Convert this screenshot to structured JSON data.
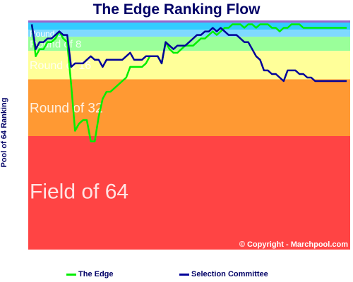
{
  "chart_data": {
    "type": "line",
    "title": "The Edge Ranking Flow",
    "ylabel": "Pool of 64 Ranking",
    "xlabel": "",
    "copyright": "© Copyright - Marchpool.com",
    "ylim": [
      1,
      64
    ],
    "bands": [
      {
        "label": "Round of 8",
        "from": 5,
        "to": 8,
        "color": "#9aff9a",
        "label_size": 15
      },
      {
        "label": "Round of 16",
        "from": 9,
        "to": 16,
        "color": "#ffff99",
        "label_size": 16
      },
      {
        "label": "Round of 32",
        "from": 17,
        "to": 32,
        "color": "#ff9933",
        "label_size": 19
      },
      {
        "label": "Field of 64",
        "from": 33,
        "to": 64,
        "color": "#ff4444",
        "label_size": 30
      }
    ],
    "top_bands": [
      {
        "from": 1,
        "to": 2,
        "color": "#33ccff"
      },
      {
        "from": 3,
        "to": 4,
        "color": "#7fd9ff"
      }
    ],
    "top_band_label": "Round o",
    "x": [
      1,
      2,
      3,
      4,
      5,
      6,
      7,
      8,
      9,
      10,
      11,
      12,
      13,
      14,
      15,
      16,
      17,
      18,
      19,
      20,
      21,
      22,
      23,
      24,
      25,
      26,
      27,
      28,
      29,
      30,
      31,
      32,
      33,
      34,
      35,
      36,
      37,
      38,
      39,
      40,
      41,
      42,
      43,
      44,
      45,
      46,
      47,
      48,
      49,
      50,
      51,
      52,
      53,
      54,
      55,
      56,
      57,
      58,
      59,
      60,
      61,
      62,
      63,
      64,
      65,
      66,
      67,
      68,
      69,
      70,
      71,
      72,
      73,
      74,
      75,
      76,
      77,
      78,
      79,
      80,
      81
    ],
    "series": [
      {
        "name": "The Edge",
        "color": "#00ee00",
        "values": [
          1,
          10,
          8,
          8,
          6,
          6,
          5,
          3,
          5,
          6,
          18,
          31,
          29,
          28,
          28,
          34,
          34,
          27,
          22,
          20,
          20,
          19,
          18,
          17,
          16,
          13,
          13,
          13,
          13,
          12,
          10,
          10,
          10,
          12,
          6,
          8,
          9,
          9,
          8,
          7,
          7,
          7,
          6,
          5,
          5,
          4,
          3,
          4,
          3,
          2,
          2,
          1,
          1,
          1,
          2,
          1,
          1,
          2,
          1,
          1,
          1,
          2,
          2,
          3,
          2,
          2,
          1,
          1,
          1,
          2,
          2,
          2,
          2,
          2,
          2,
          2,
          2,
          2,
          2,
          2,
          2
        ]
      },
      {
        "name": "Selection Committee",
        "color": "#000099",
        "values": [
          1,
          8,
          6,
          6,
          5,
          5,
          4,
          3,
          4,
          4,
          13,
          12,
          12,
          12,
          11,
          10,
          11,
          11,
          13,
          11,
          11,
          11,
          11,
          11,
          10,
          9,
          11,
          11,
          11,
          10,
          10,
          10,
          10,
          12,
          6,
          7,
          8,
          7,
          7,
          7,
          6,
          5,
          4,
          4,
          3,
          3,
          2,
          3,
          2,
          3,
          4,
          4,
          4,
          5,
          6,
          6,
          8,
          10,
          11,
          14,
          14,
          15,
          15,
          16,
          17,
          14,
          14,
          14,
          15,
          15,
          16,
          16,
          17,
          17,
          17,
          17,
          17,
          17,
          17,
          17,
          17
        ]
      }
    ]
  }
}
